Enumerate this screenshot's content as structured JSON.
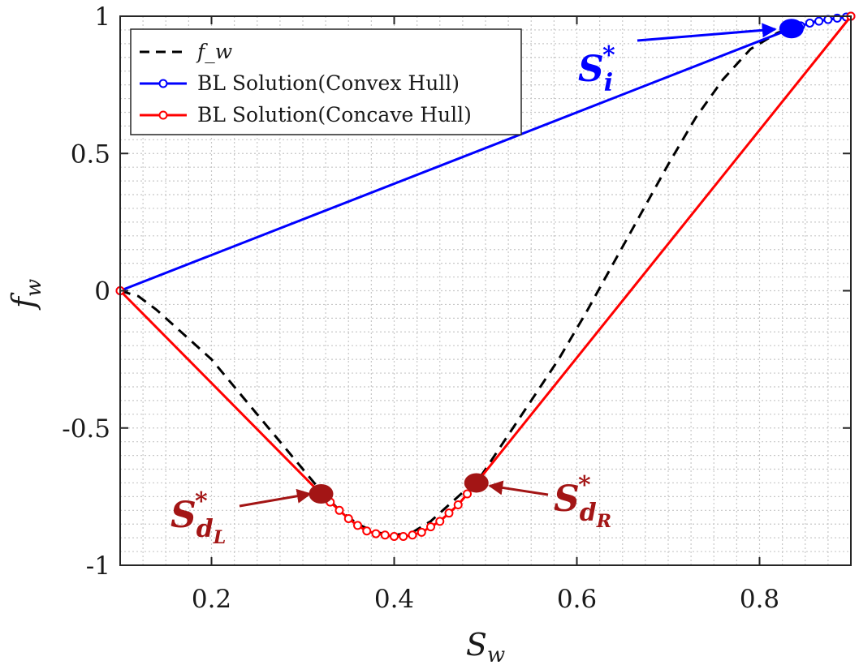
{
  "chart_data": {
    "type": "line",
    "title": "",
    "xlabel": "S_w",
    "ylabel": "f_w",
    "xlim": [
      0.1,
      0.9
    ],
    "ylim": [
      -1,
      1
    ],
    "grid": true,
    "minor_grid": true,
    "legend_position": "top-left",
    "xticks": [
      0.2,
      0.4,
      0.6,
      0.8
    ],
    "xtick_labels": [
      "0.2",
      "0.4",
      "0.6",
      "0.8"
    ],
    "yticks": [
      -1,
      -0.5,
      0,
      0.5,
      1
    ],
    "ytick_labels": [
      "-1",
      "-0.5",
      "0",
      "0.5",
      "1"
    ],
    "series": [
      {
        "name": "f_w",
        "color": "#000000",
        "style": "dashed",
        "marker": "none",
        "x": [
          0.1,
          0.12,
          0.14,
          0.16,
          0.18,
          0.2,
          0.22,
          0.24,
          0.26,
          0.28,
          0.3,
          0.32,
          0.34,
          0.36,
          0.38,
          0.4,
          0.42,
          0.44,
          0.46,
          0.48,
          0.49,
          0.52,
          0.55,
          0.58,
          0.61,
          0.64,
          0.67,
          0.7,
          0.73,
          0.76,
          0.79,
          0.82,
          0.84,
          0.86,
          0.88,
          0.9
        ],
        "y": [
          0.0,
          -0.02,
          -0.07,
          -0.13,
          -0.19,
          -0.25,
          -0.33,
          -0.41,
          -0.49,
          -0.57,
          -0.65,
          -0.73,
          -0.8,
          -0.85,
          -0.88,
          -0.89,
          -0.88,
          -0.84,
          -0.78,
          -0.72,
          -0.7,
          -0.55,
          -0.4,
          -0.25,
          -0.08,
          0.1,
          0.28,
          0.46,
          0.63,
          0.77,
          0.88,
          0.94,
          0.96,
          0.98,
          0.99,
          1.0
        ]
      },
      {
        "name": "BL Solution(Convex Hull)",
        "color": "#0000ff",
        "style": "solid",
        "marker": "circle",
        "x": [
          0.1,
          0.835,
          0.845,
          0.855,
          0.865,
          0.875,
          0.885,
          0.895,
          0.9
        ],
        "y": [
          0.0,
          0.955,
          0.965,
          0.975,
          0.982,
          0.988,
          0.993,
          0.997,
          1.0
        ]
      },
      {
        "name": "BL Solution(Concave Hull)",
        "color": "#ff0000",
        "style": "solid",
        "marker": "circle",
        "x": [
          0.1,
          0.32,
          0.33,
          0.34,
          0.35,
          0.36,
          0.37,
          0.38,
          0.39,
          0.4,
          0.41,
          0.42,
          0.43,
          0.44,
          0.45,
          0.46,
          0.47,
          0.48,
          0.49,
          0.9
        ],
        "y": [
          0.0,
          -0.74,
          -0.77,
          -0.8,
          -0.83,
          -0.855,
          -0.875,
          -0.885,
          -0.89,
          -0.895,
          -0.895,
          -0.89,
          -0.88,
          -0.86,
          -0.84,
          -0.81,
          -0.78,
          -0.74,
          -0.7,
          1.0
        ]
      }
    ],
    "highlight_points": [
      {
        "label": "S_i*",
        "x": 0.835,
        "y": 0.955,
        "color": "#0000ff"
      },
      {
        "label": "S_dL*",
        "x": 0.32,
        "y": -0.74,
        "color": "#a31515"
      },
      {
        "label": "S_dR*",
        "x": 0.49,
        "y": -0.7,
        "color": "#a31515"
      }
    ],
    "annotations": [
      {
        "base": "S",
        "sup": "*",
        "sub": "i",
        "subsub": "",
        "color": "#0000ff",
        "target": "S_i*"
      },
      {
        "base": "S",
        "sup": "*",
        "sub": "d",
        "subsub": "L",
        "color": "#a31515",
        "target": "S_dL*"
      },
      {
        "base": "S",
        "sup": "*",
        "sub": "d",
        "subsub": "R",
        "color": "#a31515",
        "target": "S_dR*"
      }
    ]
  },
  "legend": {
    "entries": [
      "f_w",
      "BL Solution(Convex Hull)",
      "BL Solution(Concave Hull)"
    ]
  }
}
